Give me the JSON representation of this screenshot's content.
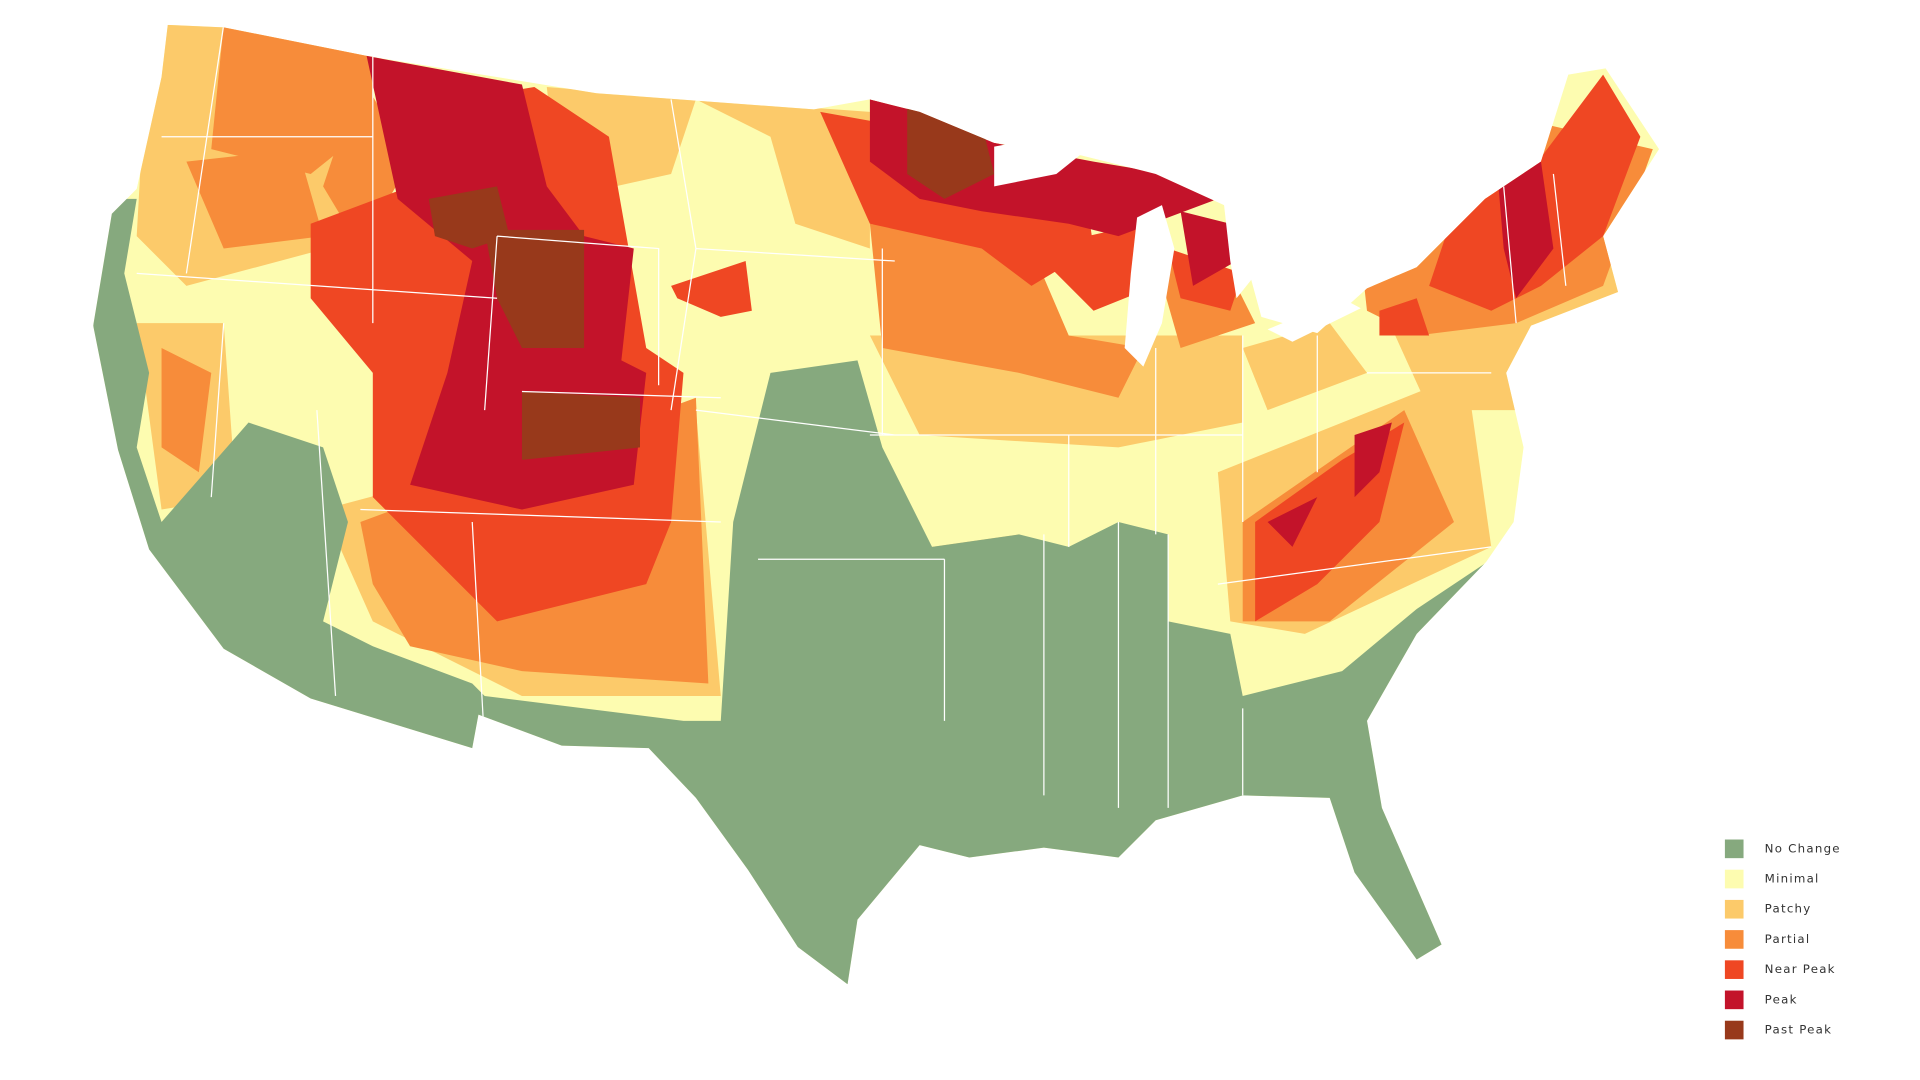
{
  "legend": {
    "items": [
      {
        "label": "No Change",
        "color": "#86a97e"
      },
      {
        "label": "Minimal",
        "color": "#fdfcb0"
      },
      {
        "label": "Patchy",
        "color": "#fcca6a"
      },
      {
        "label": "Partial",
        "color": "#f78c3a"
      },
      {
        "label": "Near Peak",
        "color": "#ef4723"
      },
      {
        "label": "Peak",
        "color": "#c3132a"
      },
      {
        "label": "Past Peak",
        "color": "#98391b"
      }
    ]
  }
}
